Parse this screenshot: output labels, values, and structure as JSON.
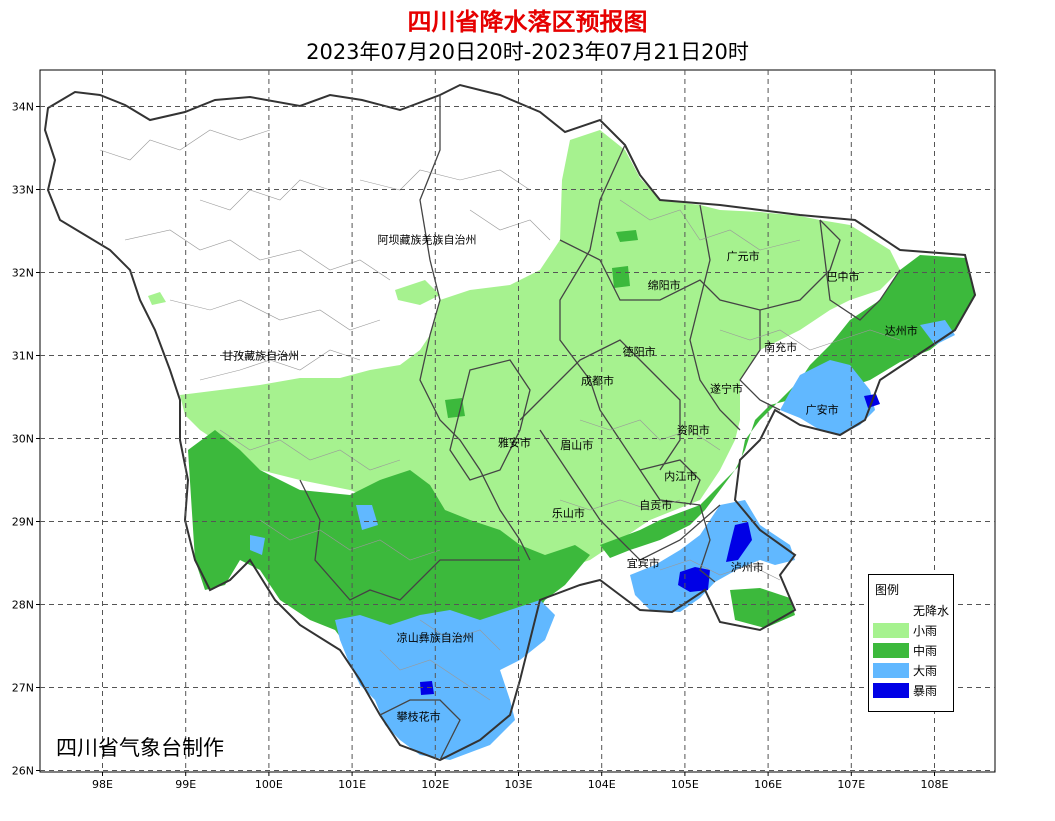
{
  "title": "四川省降水落区预报图",
  "subtitle": "2023年07月20日20时-2023年07月21日20时",
  "credit": "四川省气象台制作",
  "axes": {
    "x_ticks": [
      "98E",
      "99E",
      "100E",
      "101E",
      "102E",
      "103E",
      "104E",
      "105E",
      "106E",
      "107E",
      "108E"
    ],
    "y_ticks": [
      "34N",
      "33N",
      "32N",
      "31N",
      "30N",
      "29N",
      "28N",
      "27N",
      "26N"
    ]
  },
  "legend": {
    "title": "图例",
    "items": [
      {
        "label": "无降水",
        "color": "#ffffff"
      },
      {
        "label": "小雨",
        "color": "#a6f28f"
      },
      {
        "label": "中雨",
        "color": "#3cb93c"
      },
      {
        "label": "大雨",
        "color": "#61b8ff"
      },
      {
        "label": "暴雨",
        "color": "#0000e6"
      }
    ]
  },
  "regions": [
    {
      "name": "阿坝藏族羌族自治州",
      "lon": 101.9,
      "lat": 32.4
    },
    {
      "name": "甘孜藏族自治州",
      "lon": 99.9,
      "lat": 31.0
    },
    {
      "name": "凉山彝族自治州",
      "lon": 102.0,
      "lat": 27.6
    },
    {
      "name": "攀枝花市",
      "lon": 101.8,
      "lat": 26.65
    },
    {
      "name": "广元市",
      "lon": 105.7,
      "lat": 32.2
    },
    {
      "name": "巴中市",
      "lon": 106.9,
      "lat": 31.95
    },
    {
      "name": "绵阳市",
      "lon": 104.75,
      "lat": 31.85
    },
    {
      "name": "达州市",
      "lon": 107.6,
      "lat": 31.3
    },
    {
      "name": "德阳市",
      "lon": 104.45,
      "lat": 31.05
    },
    {
      "name": "南充市",
      "lon": 106.15,
      "lat": 31.1
    },
    {
      "name": "成都市",
      "lon": 103.95,
      "lat": 30.7
    },
    {
      "name": "遂宁市",
      "lon": 105.5,
      "lat": 30.6
    },
    {
      "name": "广安市",
      "lon": 106.65,
      "lat": 30.35
    },
    {
      "name": "资阳市",
      "lon": 105.1,
      "lat": 30.1
    },
    {
      "name": "雅安市",
      "lon": 102.95,
      "lat": 29.95
    },
    {
      "name": "眉山市",
      "lon": 103.7,
      "lat": 29.92
    },
    {
      "name": "内江市",
      "lon": 104.95,
      "lat": 29.55
    },
    {
      "name": "自贡市",
      "lon": 104.65,
      "lat": 29.2
    },
    {
      "name": "乐山市",
      "lon": 103.6,
      "lat": 29.1
    },
    {
      "name": "宜宾市",
      "lon": 104.5,
      "lat": 28.5
    },
    {
      "name": "泸州市",
      "lon": 105.75,
      "lat": 28.45
    }
  ]
}
